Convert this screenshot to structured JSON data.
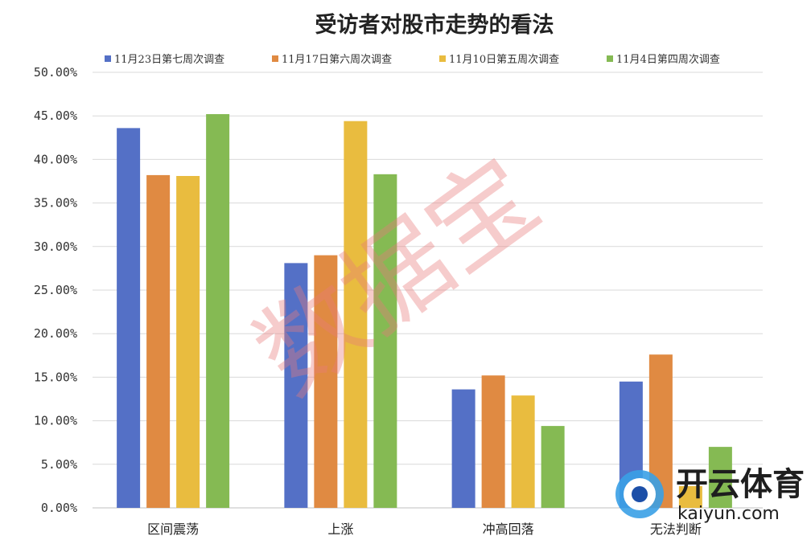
{
  "chart_data": {
    "type": "bar",
    "title": "受访者对股市走势的看法",
    "categories": [
      "区间震荡",
      "上涨",
      "冲高回落",
      "无法判断"
    ],
    "series": [
      {
        "name": "11月23日第七周次调查",
        "color": "#5470c6",
        "values": [
          43.6,
          28.1,
          13.6,
          14.5
        ]
      },
      {
        "name": "11月17日第六周次调查",
        "color": "#e08a42",
        "values": [
          38.2,
          29.0,
          15.2,
          17.6
        ]
      },
      {
        "name": "11月10日第五周次调查",
        "color": "#e9bc3f",
        "values": [
          38.1,
          44.4,
          12.9,
          2.5
        ]
      },
      {
        "name": "11月4日第四周次调查",
        "color": "#85ba53",
        "values": [
          45.2,
          38.3,
          9.4,
          7.0
        ]
      }
    ],
    "yticks": [
      "0.00%",
      "5.00%",
      "10.00%",
      "15.00%",
      "20.00%",
      "25.00%",
      "30.00%",
      "35.00%",
      "40.00%",
      "45.00%",
      "50.00%"
    ],
    "ylim": [
      0,
      50
    ],
    "grid": true,
    "legend_position": "top",
    "watermark": "数据宝"
  },
  "logo": {
    "name": "开云体育",
    "domain": "kaiyun.com"
  }
}
